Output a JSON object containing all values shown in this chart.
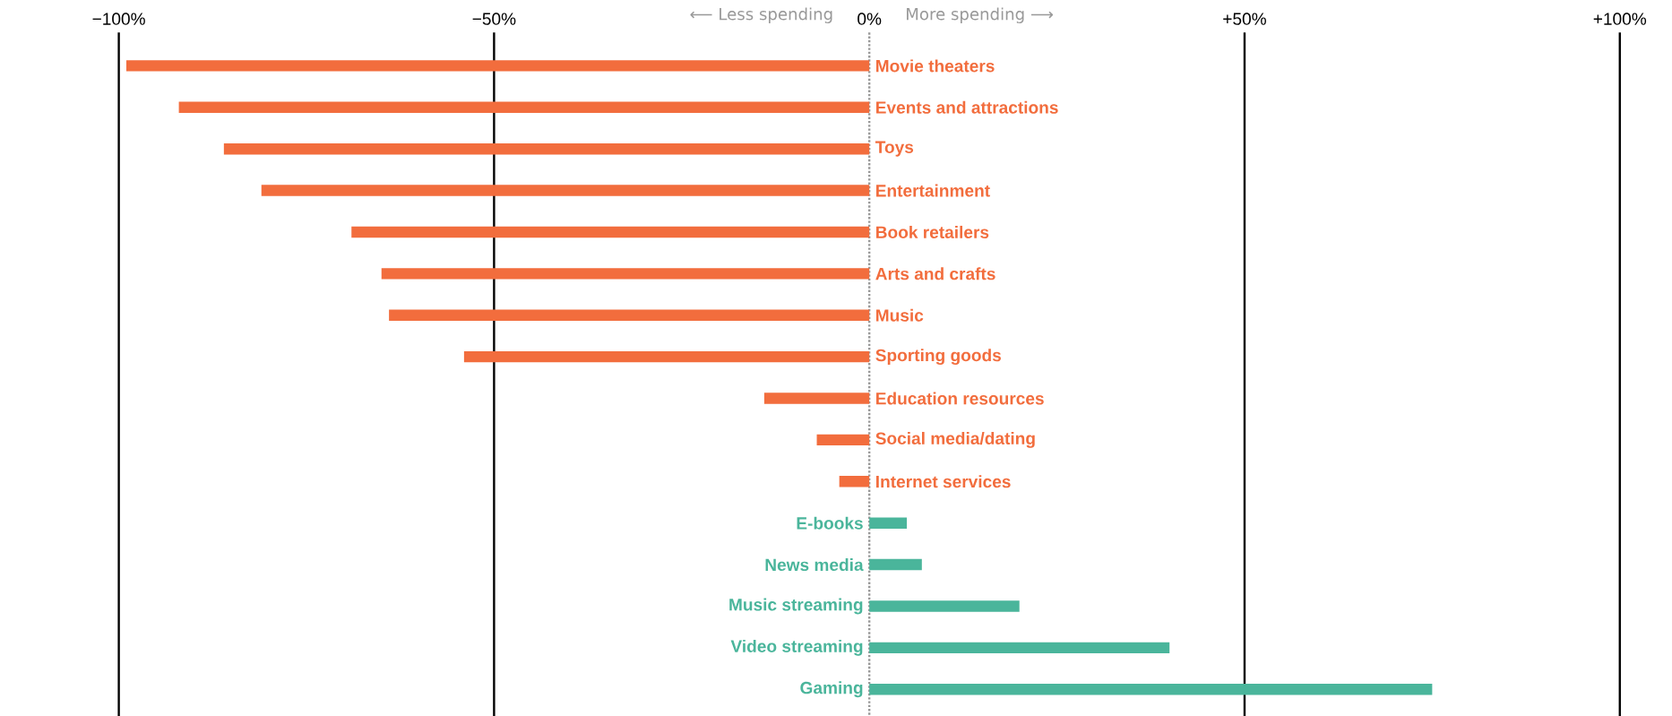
{
  "chart_data": {
    "type": "bar",
    "orientation": "horizontal",
    "categories": [
      "Movie theaters",
      "Events and attractions",
      "Toys",
      "Entertainment",
      "Book retailers",
      "Arts and crafts",
      "Music",
      "Sporting goods",
      "Education resources",
      "Social media/dating",
      "Internet services",
      "E-books",
      "News media",
      "Music streaming",
      "Video streaming",
      "Gaming"
    ],
    "values": [
      -99,
      -92,
      -86,
      -81,
      -69,
      -65,
      -64,
      -54,
      -14,
      -7,
      -4,
      5,
      7,
      20,
      40,
      75
    ],
    "colors": [
      "#f26d3d",
      "#f26d3d",
      "#f26d3d",
      "#f26d3d",
      "#f26d3d",
      "#f26d3d",
      "#f26d3d",
      "#f26d3d",
      "#f26d3d",
      "#f26d3d",
      "#f26d3d",
      "#4ab59b",
      "#4ab59b",
      "#4ab59b",
      "#4ab59b",
      "#4ab59b"
    ],
    "xlim": [
      -100,
      100
    ],
    "xticks": [
      {
        "value": -100,
        "label": "−100%"
      },
      {
        "value": -50,
        "label": "−50%"
      },
      {
        "value": 0,
        "label": "0%"
      },
      {
        "value": 50,
        "label": "+50%"
      },
      {
        "value": 100,
        "label": "+100%"
      }
    ],
    "grid": "x",
    "ref_lines": [
      {
        "axis": "x",
        "value": 0,
        "color": "#999999",
        "line_style": "dotted"
      }
    ],
    "annotations": [
      "⟵ Less spending",
      "More spending ⟶"
    ]
  }
}
